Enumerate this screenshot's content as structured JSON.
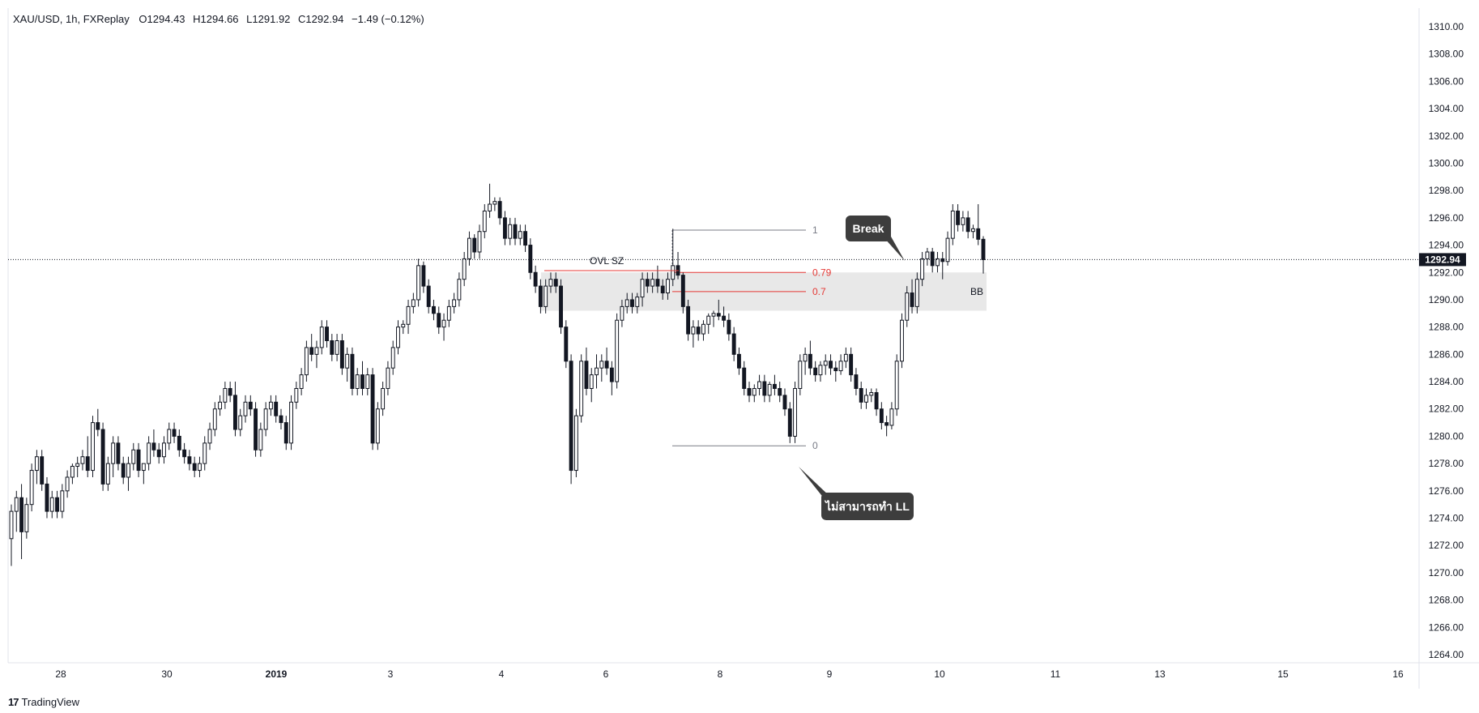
{
  "header": {
    "symbol": "XAU/USD, 1h, FXReplay",
    "open_label": "O",
    "open": "1294.43",
    "high_label": "H",
    "high": "1294.66",
    "low_label": "L",
    "low": "1291.92",
    "close_label": "C",
    "close": "1292.94",
    "change": "−1.49 (−0.12%)"
  },
  "colors": {
    "candle_body": "#131722",
    "candle_up_body": "#ffffff",
    "zone": "#e8e8e8",
    "fib_red": "#e53935",
    "fib_grey": "#787b86",
    "callout_bg": "#3d3d3d",
    "price_badge": "#131722"
  },
  "chart_data": {
    "type": "candlestick",
    "y_axis": {
      "min": 1264,
      "max": 1310,
      "ticks": [
        "1310.00",
        "1308.00",
        "1306.00",
        "1304.00",
        "1302.00",
        "1300.00",
        "1298.00",
        "1296.00",
        "1294.00",
        "1292.00",
        "1290.00",
        "1288.00",
        "1286.00",
        "1284.00",
        "1282.00",
        "1280.00",
        "1278.00",
        "1276.00",
        "1274.00",
        "1272.00",
        "1270.00",
        "1268.00",
        "1266.00",
        "1264.00"
      ]
    },
    "x_axis": {
      "ticks": [
        "28",
        "30",
        "2019",
        "3",
        "4",
        "6",
        "8",
        "9",
        "10",
        "11",
        "13",
        "15",
        "16"
      ]
    },
    "current_price": "1292.94",
    "fib": {
      "levels": [
        {
          "label": "1",
          "price": 1295.1
        },
        {
          "label": "0.79",
          "price": 1292.0
        },
        {
          "label": "0.7",
          "price": 1290.6
        },
        {
          "label": "0",
          "price": 1279.3
        }
      ]
    },
    "zone": {
      "label": "BB",
      "top": 1292.0,
      "bottom": 1289.2
    },
    "annotations": {
      "ovl": "OVL SZ",
      "break": "Break",
      "no_ll": "ไม่สามารถทำ LL"
    },
    "candles": [
      [
        1272.5,
        1275.0,
        1270.5,
        1274.5
      ],
      [
        1274.5,
        1276.0,
        1273.0,
        1275.5
      ],
      [
        1275.5,
        1276.5,
        1271.0,
        1273.0
      ],
      [
        1273.0,
        1275.5,
        1272.5,
        1275.0
      ],
      [
        1275.0,
        1278.0,
        1274.5,
        1277.5
      ],
      [
        1277.5,
        1279.0,
        1276.5,
        1278.5
      ],
      [
        1278.5,
        1279.0,
        1276.0,
        1276.5
      ],
      [
        1276.5,
        1277.0,
        1274.0,
        1274.5
      ],
      [
        1274.5,
        1276.0,
        1274.0,
        1275.5
      ],
      [
        1275.5,
        1276.0,
        1274.0,
        1274.5
      ],
      [
        1274.5,
        1276.5,
        1274.0,
        1276.0
      ],
      [
        1276.0,
        1277.5,
        1275.5,
        1277.0
      ],
      [
        1277.0,
        1278.0,
        1276.5,
        1277.8
      ],
      [
        1277.8,
        1278.5,
        1277.0,
        1278.0
      ],
      [
        1278.0,
        1279.0,
        1277.5,
        1278.5
      ],
      [
        1278.5,
        1280.0,
        1277.0,
        1277.5
      ],
      [
        1277.5,
        1281.5,
        1277.0,
        1281.0
      ],
      [
        1281.0,
        1282.0,
        1280.0,
        1280.5
      ],
      [
        1280.5,
        1281.0,
        1276.0,
        1276.5
      ],
      [
        1276.5,
        1278.5,
        1276.0,
        1278.0
      ],
      [
        1278.0,
        1280.0,
        1277.0,
        1279.5
      ],
      [
        1279.5,
        1280.0,
        1277.5,
        1278.0
      ],
      [
        1278.0,
        1278.5,
        1276.5,
        1277.0
      ],
      [
        1277.0,
        1278.5,
        1276.0,
        1278.0
      ],
      [
        1278.0,
        1279.5,
        1277.5,
        1279.0
      ],
      [
        1279.0,
        1279.5,
        1277.0,
        1277.5
      ],
      [
        1277.5,
        1278.0,
        1276.5,
        1278.0
      ],
      [
        1278.0,
        1280.0,
        1277.5,
        1279.5
      ],
      [
        1279.5,
        1280.5,
        1278.5,
        1279.0
      ],
      [
        1279.0,
        1279.5,
        1278.0,
        1278.5
      ],
      [
        1278.5,
        1280.0,
        1278.0,
        1279.5
      ],
      [
        1279.5,
        1281.0,
        1279.0,
        1280.5
      ],
      [
        1280.5,
        1281.0,
        1279.5,
        1280.0
      ],
      [
        1280.0,
        1280.5,
        1278.5,
        1279.0
      ],
      [
        1279.0,
        1279.5,
        1278.0,
        1278.5
      ],
      [
        1278.5,
        1279.0,
        1277.5,
        1278.0
      ],
      [
        1278.0,
        1278.5,
        1277.0,
        1277.5
      ],
      [
        1277.5,
        1278.5,
        1277.0,
        1278.0
      ],
      [
        1278.0,
        1280.0,
        1277.5,
        1279.5
      ],
      [
        1279.5,
        1281.0,
        1279.0,
        1280.5
      ],
      [
        1280.5,
        1282.5,
        1280.0,
        1282.0
      ],
      [
        1282.0,
        1283.0,
        1281.5,
        1282.5
      ],
      [
        1282.5,
        1284.0,
        1282.0,
        1283.5
      ],
      [
        1283.5,
        1284.0,
        1282.5,
        1283.0
      ],
      [
        1283.0,
        1284.0,
        1280.0,
        1280.5
      ],
      [
        1280.5,
        1282.0,
        1280.0,
        1281.5
      ],
      [
        1281.5,
        1283.0,
        1281.0,
        1282.5
      ],
      [
        1282.5,
        1283.0,
        1281.5,
        1282.0
      ],
      [
        1282.0,
        1282.5,
        1278.5,
        1279.0
      ],
      [
        1279.0,
        1281.0,
        1278.5,
        1280.5
      ],
      [
        1280.5,
        1282.5,
        1280.0,
        1282.0
      ],
      [
        1282.0,
        1283.0,
        1281.5,
        1282.5
      ],
      [
        1282.5,
        1283.0,
        1281.0,
        1281.5
      ],
      [
        1281.5,
        1282.0,
        1280.5,
        1281.0
      ],
      [
        1281.0,
        1281.5,
        1279.0,
        1279.5
      ],
      [
        1279.5,
        1283.0,
        1279.0,
        1282.5
      ],
      [
        1282.5,
        1284.0,
        1282.0,
        1283.5
      ],
      [
        1283.5,
        1285.0,
        1283.0,
        1284.5
      ],
      [
        1284.5,
        1287.0,
        1284.0,
        1286.5
      ],
      [
        1286.5,
        1287.5,
        1285.5,
        1286.0
      ],
      [
        1286.0,
        1287.0,
        1285.0,
        1286.5
      ],
      [
        1286.5,
        1288.5,
        1286.0,
        1288.0
      ],
      [
        1288.0,
        1288.5,
        1286.5,
        1287.0
      ],
      [
        1287.0,
        1287.5,
        1285.5,
        1286.0
      ],
      [
        1286.0,
        1287.5,
        1285.5,
        1287.0
      ],
      [
        1287.0,
        1287.5,
        1284.5,
        1285.0
      ],
      [
        1285.0,
        1286.5,
        1284.0,
        1286.0
      ],
      [
        1286.0,
        1286.5,
        1283.0,
        1283.5
      ],
      [
        1283.5,
        1285.0,
        1283.0,
        1284.5
      ],
      [
        1284.5,
        1285.5,
        1283.0,
        1283.5
      ],
      [
        1283.5,
        1285.0,
        1283.0,
        1284.5
      ],
      [
        1284.5,
        1285.0,
        1279.0,
        1279.5
      ],
      [
        1279.5,
        1282.5,
        1279.0,
        1282.0
      ],
      [
        1282.0,
        1284.0,
        1281.5,
        1283.5
      ],
      [
        1283.5,
        1285.5,
        1283.0,
        1285.0
      ],
      [
        1285.0,
        1287.0,
        1284.5,
        1286.5
      ],
      [
        1286.5,
        1288.5,
        1286.0,
        1288.0
      ],
      [
        1288.0,
        1288.5,
        1287.5,
        1288.2
      ],
      [
        1288.2,
        1290.0,
        1287.5,
        1289.5
      ],
      [
        1289.5,
        1290.5,
        1289.0,
        1290.0
      ],
      [
        1290.0,
        1293.0,
        1289.5,
        1292.5
      ],
      [
        1292.5,
        1292.8,
        1290.5,
        1291.0
      ],
      [
        1291.0,
        1291.5,
        1289.0,
        1289.5
      ],
      [
        1289.5,
        1290.0,
        1288.5,
        1289.0
      ],
      [
        1289.0,
        1289.5,
        1287.5,
        1288.0
      ],
      [
        1288.0,
        1289.0,
        1287.0,
        1288.5
      ],
      [
        1288.5,
        1290.0,
        1288.0,
        1289.5
      ],
      [
        1289.5,
        1290.5,
        1289.0,
        1290.0
      ],
      [
        1290.0,
        1292.0,
        1289.5,
        1291.5
      ],
      [
        1291.5,
        1293.5,
        1291.0,
        1293.0
      ],
      [
        1293.0,
        1295.0,
        1292.5,
        1294.5
      ],
      [
        1294.5,
        1294.8,
        1293.0,
        1293.5
      ],
      [
        1293.5,
        1295.5,
        1293.0,
        1295.0
      ],
      [
        1295.0,
        1297.0,
        1294.5,
        1296.5
      ],
      [
        1296.5,
        1298.5,
        1296.0,
        1297.0
      ],
      [
        1297.0,
        1297.5,
        1296.5,
        1297.2
      ],
      [
        1297.2,
        1297.5,
        1295.5,
        1296.0
      ],
      [
        1296.0,
        1296.5,
        1294.0,
        1294.5
      ],
      [
        1294.5,
        1296.0,
        1294.0,
        1295.5
      ],
      [
        1295.5,
        1296.0,
        1294.0,
        1294.5
      ],
      [
        1294.5,
        1295.5,
        1294.0,
        1295.0
      ],
      [
        1295.0,
        1295.5,
        1293.5,
        1294.0
      ],
      [
        1294.0,
        1294.5,
        1291.5,
        1292.0
      ],
      [
        1292.0,
        1292.5,
        1290.5,
        1291.0
      ],
      [
        1291.0,
        1291.5,
        1289.0,
        1289.5
      ],
      [
        1289.5,
        1291.5,
        1289.0,
        1291.0
      ],
      [
        1291.0,
        1292.0,
        1290.5,
        1291.5
      ],
      [
        1291.5,
        1292.0,
        1290.5,
        1291.0
      ],
      [
        1291.0,
        1291.5,
        1287.5,
        1288.0
      ],
      [
        1288.0,
        1288.5,
        1285.0,
        1285.5
      ],
      [
        1285.5,
        1286.0,
        1276.5,
        1277.5
      ],
      [
        1277.5,
        1282.0,
        1277.0,
        1281.5
      ],
      [
        1281.5,
        1286.0,
        1281.0,
        1285.5
      ],
      [
        1285.5,
        1286.5,
        1283.0,
        1283.5
      ],
      [
        1283.5,
        1285.0,
        1282.5,
        1284.5
      ],
      [
        1284.5,
        1286.0,
        1283.5,
        1285.0
      ],
      [
        1285.0,
        1286.0,
        1284.0,
        1285.5
      ],
      [
        1285.5,
        1286.5,
        1284.5,
        1285.0
      ],
      [
        1285.0,
        1285.5,
        1283.0,
        1284.0
      ],
      [
        1284.0,
        1289.0,
        1283.5,
        1288.5
      ],
      [
        1288.5,
        1290.0,
        1288.0,
        1289.5
      ],
      [
        1289.5,
        1290.5,
        1289.0,
        1290.0
      ],
      [
        1290.0,
        1290.5,
        1289.0,
        1289.5
      ],
      [
        1289.5,
        1290.5,
        1289.0,
        1290.2
      ],
      [
        1290.2,
        1292.0,
        1289.5,
        1291.5
      ],
      [
        1291.5,
        1292.0,
        1290.5,
        1291.0
      ],
      [
        1291.0,
        1292.0,
        1290.5,
        1291.5
      ],
      [
        1291.5,
        1292.5,
        1290.5,
        1291.0
      ],
      [
        1291.0,
        1291.5,
        1290.0,
        1290.5
      ],
      [
        1290.5,
        1292.0,
        1290.0,
        1291.5
      ],
      [
        1291.5,
        1295.2,
        1291.0,
        1292.5
      ],
      [
        1292.5,
        1293.5,
        1291.5,
        1291.8
      ],
      [
        1291.8,
        1292.0,
        1289.0,
        1289.5
      ],
      [
        1289.5,
        1290.0,
        1287.0,
        1287.5
      ],
      [
        1287.5,
        1288.5,
        1286.5,
        1288.0
      ],
      [
        1288.0,
        1288.5,
        1287.0,
        1287.5
      ],
      [
        1287.5,
        1288.5,
        1287.0,
        1288.2
      ],
      [
        1288.2,
        1289.0,
        1287.5,
        1288.8
      ],
      [
        1288.8,
        1289.2,
        1288.0,
        1289.0
      ],
      [
        1289.0,
        1290.0,
        1288.5,
        1288.8
      ],
      [
        1288.8,
        1289.5,
        1288.0,
        1288.5
      ],
      [
        1288.5,
        1289.0,
        1287.0,
        1287.5
      ],
      [
        1287.5,
        1288.0,
        1285.5,
        1286.0
      ],
      [
        1286.0,
        1286.5,
        1284.5,
        1285.0
      ],
      [
        1285.0,
        1285.5,
        1283.0,
        1283.5
      ],
      [
        1283.5,
        1284.0,
        1282.5,
        1283.0
      ],
      [
        1283.0,
        1283.8,
        1282.5,
        1283.5
      ],
      [
        1283.5,
        1284.5,
        1283.0,
        1284.0
      ],
      [
        1284.0,
        1284.5,
        1282.5,
        1283.0
      ],
      [
        1283.0,
        1284.0,
        1282.5,
        1283.8
      ],
      [
        1283.8,
        1284.5,
        1283.0,
        1283.5
      ],
      [
        1283.5,
        1284.0,
        1282.5,
        1283.0
      ],
      [
        1283.0,
        1283.5,
        1281.5,
        1282.0
      ],
      [
        1282.0,
        1282.5,
        1279.5,
        1280.0
      ],
      [
        1280.0,
        1284.0,
        1279.5,
        1283.5
      ],
      [
        1283.5,
        1286.0,
        1283.0,
        1285.5
      ],
      [
        1285.5,
        1286.5,
        1284.5,
        1286.0
      ],
      [
        1286.0,
        1287.0,
        1284.5,
        1285.0
      ],
      [
        1285.0,
        1285.5,
        1284.0,
        1284.5
      ],
      [
        1284.5,
        1285.5,
        1284.0,
        1285.2
      ],
      [
        1285.2,
        1286.0,
        1284.5,
        1285.5
      ],
      [
        1285.5,
        1286.0,
        1284.5,
        1285.0
      ],
      [
        1285.0,
        1285.5,
        1284.0,
        1284.8
      ],
      [
        1284.8,
        1286.0,
        1284.5,
        1285.5
      ],
      [
        1285.5,
        1286.5,
        1285.0,
        1286.0
      ],
      [
        1286.0,
        1286.5,
        1284.0,
        1284.5
      ],
      [
        1284.5,
        1285.0,
        1283.0,
        1283.5
      ],
      [
        1283.5,
        1284.0,
        1282.0,
        1282.5
      ],
      [
        1282.5,
        1283.5,
        1282.0,
        1283.0
      ],
      [
        1283.0,
        1283.5,
        1282.5,
        1283.2
      ],
      [
        1283.2,
        1283.5,
        1281.5,
        1282.0
      ],
      [
        1282.0,
        1282.5,
        1280.5,
        1281.0
      ],
      [
        1281.0,
        1281.5,
        1280.0,
        1280.8
      ],
      [
        1280.8,
        1282.5,
        1280.5,
        1282.0
      ],
      [
        1282.0,
        1286.0,
        1281.5,
        1285.5
      ],
      [
        1285.5,
        1289.0,
        1285.0,
        1288.5
      ],
      [
        1288.5,
        1291.0,
        1288.0,
        1290.5
      ],
      [
        1290.5,
        1291.5,
        1289.0,
        1289.5
      ],
      [
        1289.5,
        1292.0,
        1289.0,
        1291.5
      ],
      [
        1291.5,
        1293.5,
        1291.0,
        1293.0
      ],
      [
        1293.0,
        1293.8,
        1292.5,
        1293.5
      ],
      [
        1293.5,
        1293.8,
        1292.0,
        1292.5
      ],
      [
        1292.5,
        1293.5,
        1292.0,
        1293.0
      ],
      [
        1293.0,
        1293.5,
        1291.5,
        1292.8
      ],
      [
        1292.8,
        1295.0,
        1292.5,
        1294.5
      ],
      [
        1294.5,
        1297.0,
        1294.0,
        1296.5
      ],
      [
        1296.5,
        1297.0,
        1295.0,
        1295.5
      ],
      [
        1295.5,
        1296.5,
        1295.0,
        1296.0
      ],
      [
        1296.0,
        1296.5,
        1294.5,
        1295.0
      ],
      [
        1295.0,
        1295.5,
        1294.5,
        1295.2
      ],
      [
        1295.2,
        1297.0,
        1294.0,
        1294.43
      ],
      [
        1294.43,
        1294.66,
        1291.92,
        1292.94
      ]
    ]
  },
  "footer": {
    "brand": "TradingView"
  }
}
